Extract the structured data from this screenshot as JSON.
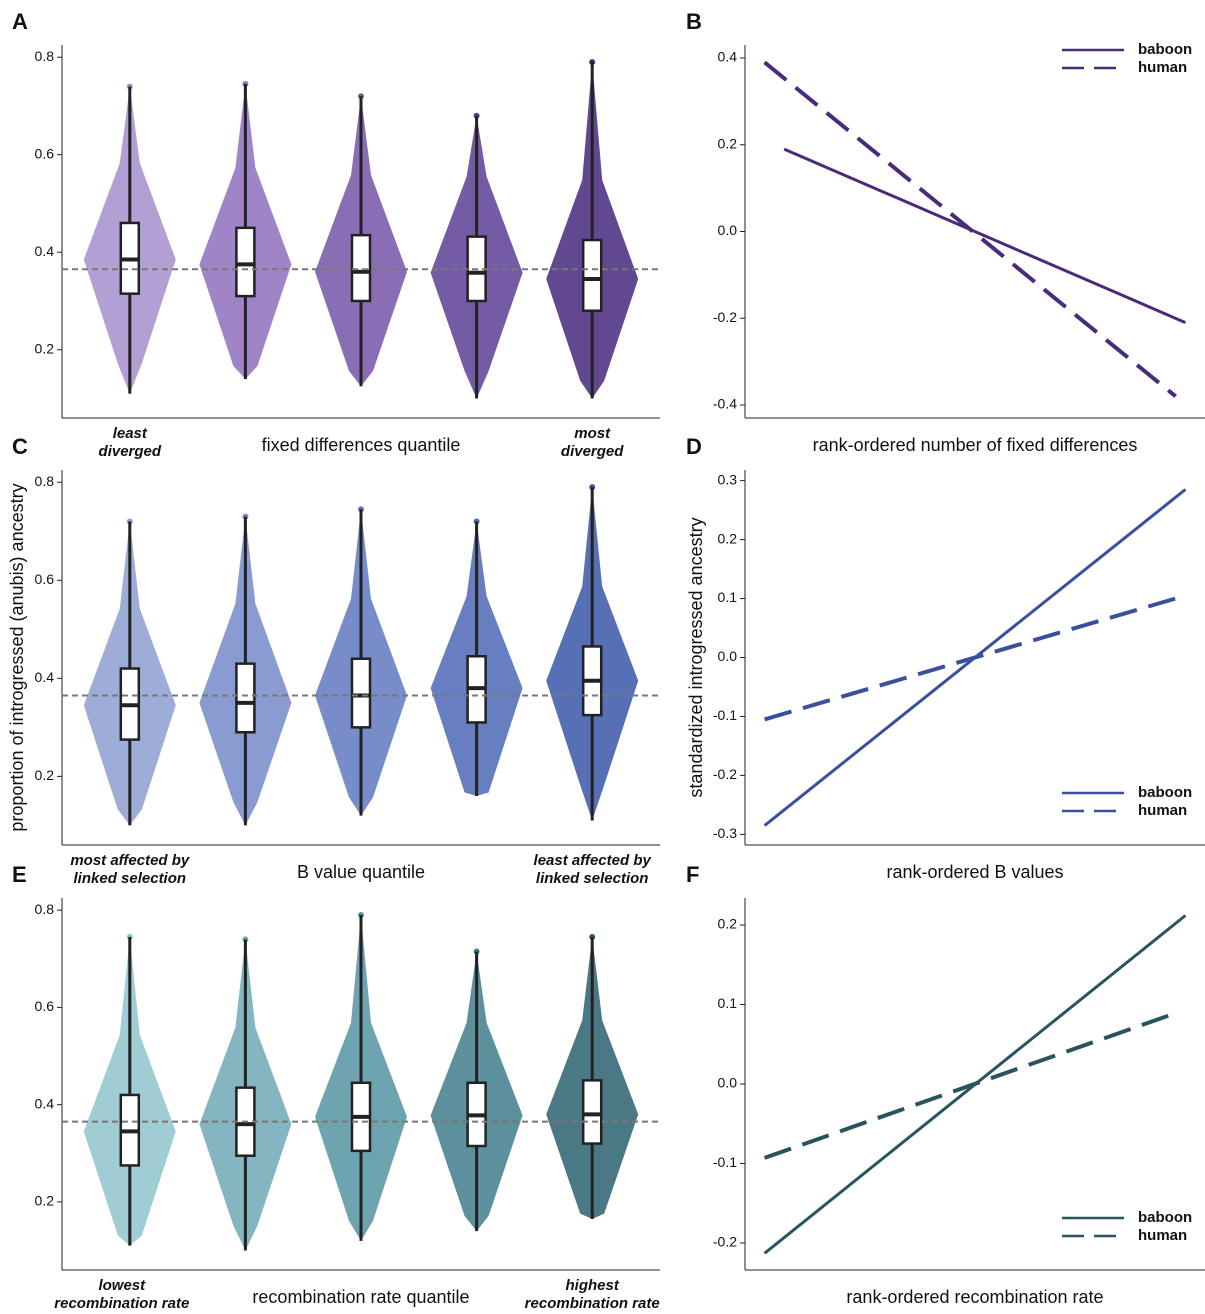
{
  "chart_data": [
    {
      "type": "box",
      "panel": "A",
      "x_label": "fixed differences quantile",
      "low_label": [
        "least",
        "diverged"
      ],
      "high_label": [
        "most",
        "diverged"
      ],
      "ylim": [
        0.06,
        0.825
      ],
      "yticks": [
        0.2,
        0.4,
        0.6,
        0.8
      ],
      "hline": 0.365,
      "boxes": [
        {
          "color": "#a58fcd",
          "min": 0.11,
          "q1": 0.315,
          "median": 0.385,
          "q3": 0.46,
          "max": 0.74
        },
        {
          "color": "#8f6fbe",
          "min": 0.14,
          "q1": 0.31,
          "median": 0.375,
          "q3": 0.45,
          "max": 0.745
        },
        {
          "color": "#7455a9",
          "min": 0.125,
          "q1": 0.3,
          "median": 0.36,
          "q3": 0.435,
          "max": 0.72
        },
        {
          "color": "#5d3d95",
          "min": 0.1,
          "q1": 0.3,
          "median": 0.358,
          "q3": 0.432,
          "max": 0.68
        },
        {
          "color": "#46287e",
          "min": 0.1,
          "q1": 0.28,
          "median": 0.345,
          "q3": 0.425,
          "max": 0.79
        }
      ]
    },
    {
      "type": "line",
      "panel": "B",
      "x_label": "rank-ordered number of fixed differences",
      "legend": "top-right",
      "xlim": [
        0.7,
        5.4
      ],
      "ylim": [
        -0.43,
        0.43
      ],
      "yticks": [
        -0.4,
        -0.2,
        {
          "value": 0,
          "label": "0.0"
        },
        0.2,
        0.4
      ],
      "series": [
        {
          "name": "baboon",
          "color": "#4a2a7a",
          "dash": false,
          "x": [
            1.1,
            5.2
          ],
          "values": [
            0.19,
            -0.21
          ]
        },
        {
          "name": "human",
          "color": "#4a2a7a",
          "dash": true,
          "x": [
            0.9,
            5.1
          ],
          "values": [
            0.39,
            -0.38
          ]
        }
      ]
    },
    {
      "type": "box",
      "panel": "C",
      "x_label": "B value quantile",
      "y_label": "proportion of introgressed (anubis) ancestry",
      "low_label": [
        "most affected by",
        "linked selection"
      ],
      "high_label": [
        "least affected by",
        "linked selection"
      ],
      "ylim": [
        0.06,
        0.825
      ],
      "yticks": [
        0.2,
        0.4,
        0.6,
        0.8
      ],
      "hline": 0.365,
      "boxes": [
        {
          "color": "#8c9fd0",
          "min": 0.1,
          "q1": 0.275,
          "median": 0.345,
          "q3": 0.42,
          "max": 0.72
        },
        {
          "color": "#7489c8",
          "min": 0.1,
          "q1": 0.29,
          "median": 0.35,
          "q3": 0.43,
          "max": 0.73
        },
        {
          "color": "#5f78c0",
          "min": 0.12,
          "q1": 0.3,
          "median": 0.365,
          "q3": 0.44,
          "max": 0.745
        },
        {
          "color": "#4c67b6",
          "min": 0.16,
          "q1": 0.31,
          "median": 0.38,
          "q3": 0.445,
          "max": 0.72
        },
        {
          "color": "#3a56a8",
          "min": 0.11,
          "q1": 0.325,
          "median": 0.395,
          "q3": 0.465,
          "max": 0.79
        }
      ]
    },
    {
      "type": "line",
      "panel": "D",
      "x_label": "rank-ordered B values",
      "y_label": "standardized introgressed ancestry",
      "legend": "bottom-right",
      "xlim": [
        0.7,
        5.4
      ],
      "ylim": [
        -0.318,
        0.318
      ],
      "yticks": [
        -0.3,
        -0.2,
        -0.1,
        {
          "value": 0,
          "label": "0.0"
        },
        0.1,
        0.2,
        0.3
      ],
      "series": [
        {
          "name": "baboon",
          "color": "#3a4f9e",
          "dash": false,
          "x": [
            0.9,
            5.2
          ],
          "values": [
            -0.285,
            0.285
          ]
        },
        {
          "name": "human",
          "color": "#3a4f9e",
          "dash": true,
          "x": [
            0.9,
            5.2
          ],
          "values": [
            -0.105,
            0.105
          ]
        }
      ]
    },
    {
      "type": "box",
      "panel": "E",
      "x_label": "recombination rate quantile",
      "low_label": [
        "lowest",
        "recombination rate"
      ],
      "high_label": [
        "highest",
        "recombination rate"
      ],
      "ylim": [
        0.06,
        0.825
      ],
      "yticks": [
        0.2,
        0.4,
        0.6,
        0.8
      ],
      "hline": 0.365,
      "boxes": [
        {
          "color": "#8fc3cd",
          "min": 0.11,
          "q1": 0.275,
          "median": 0.345,
          "q3": 0.42,
          "max": 0.745
        },
        {
          "color": "#6ea8b6",
          "min": 0.1,
          "q1": 0.295,
          "median": 0.36,
          "q3": 0.435,
          "max": 0.74
        },
        {
          "color": "#5593a2",
          "min": 0.12,
          "q1": 0.305,
          "median": 0.375,
          "q3": 0.445,
          "max": 0.79
        },
        {
          "color": "#3f7c8c",
          "min": 0.14,
          "q1": 0.315,
          "median": 0.378,
          "q3": 0.445,
          "max": 0.715
        },
        {
          "color": "#2a6070",
          "min": 0.165,
          "q1": 0.32,
          "median": 0.38,
          "q3": 0.45,
          "max": 0.745
        }
      ]
    },
    {
      "type": "line",
      "panel": "F",
      "x_label": "rank-ordered recombination rate",
      "legend": "bottom-right",
      "xlim": [
        0.7,
        5.4
      ],
      "ylim": [
        -0.234,
        0.234
      ],
      "yticks": [
        -0.2,
        -0.1,
        {
          "value": 0,
          "label": "0.0"
        },
        0.1,
        0.2
      ],
      "series": [
        {
          "name": "baboon",
          "color": "#2a5360",
          "dash": false,
          "x": [
            0.9,
            5.2
          ],
          "values": [
            -0.213,
            0.212
          ]
        },
        {
          "name": "human",
          "color": "#2a5360",
          "dash": true,
          "x": [
            0.9,
            5.12
          ],
          "values": [
            -0.093,
            0.09
          ]
        }
      ]
    }
  ]
}
